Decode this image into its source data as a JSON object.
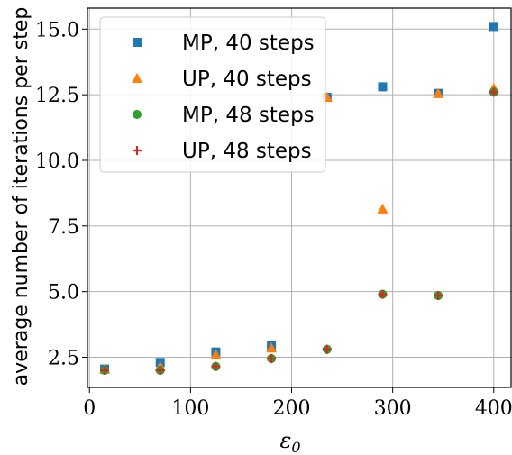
{
  "chart_data": {
    "type": "scatter",
    "xlabel": "ε",
    "xlabel_sub": "0",
    "ylabel": "average number of iterations per step",
    "xlim": [
      -2,
      418
    ],
    "ylim": [
      1.35,
      15.8
    ],
    "x_ticks": [
      0,
      100,
      200,
      300,
      400
    ],
    "x_tick_labels": [
      "0",
      "100",
      "200",
      "300",
      "400"
    ],
    "y_ticks": [
      2.5,
      5.0,
      7.5,
      10.0,
      12.5,
      15.0
    ],
    "y_tick_labels": [
      "2.5",
      "5.0",
      "7.5",
      "10.0",
      "12.5",
      "15.0"
    ],
    "grid": true,
    "legend_position": "upper-left",
    "series": [
      {
        "name": "MP, 40 steps",
        "marker": "square",
        "color": "#1f77b4",
        "points": [
          [
            15,
            2.05
          ],
          [
            70,
            2.3
          ],
          [
            125,
            2.7
          ],
          [
            180,
            2.95
          ],
          [
            235,
            12.4
          ],
          [
            290,
            12.8
          ],
          [
            345,
            12.55
          ],
          [
            400,
            15.1
          ]
        ]
      },
      {
        "name": "UP, 40 steps",
        "marker": "triangle",
        "color": "#ff7f0e",
        "points": [
          [
            15,
            2.05
          ],
          [
            70,
            2.15
          ],
          [
            125,
            2.6
          ],
          [
            180,
            2.85
          ],
          [
            235,
            12.4
          ],
          [
            290,
            8.15
          ],
          [
            345,
            12.55
          ],
          [
            400,
            12.75
          ]
        ]
      },
      {
        "name": "MP, 48 steps",
        "marker": "circle",
        "color": "#2ca02c",
        "points": [
          [
            15,
            2.0
          ],
          [
            70,
            2.0
          ],
          [
            125,
            2.15
          ],
          [
            180,
            2.45
          ],
          [
            235,
            2.8
          ],
          [
            290,
            4.9
          ],
          [
            345,
            4.85
          ],
          [
            400,
            12.6
          ]
        ]
      },
      {
        "name": "UP, 48 steps",
        "marker": "plus",
        "color": "#d62728",
        "points": [
          [
            15,
            2.0
          ],
          [
            70,
            2.0
          ],
          [
            125,
            2.15
          ],
          [
            180,
            2.45
          ],
          [
            235,
            2.8
          ],
          [
            290,
            4.9
          ],
          [
            345,
            4.85
          ],
          [
            400,
            12.6
          ]
        ]
      }
    ]
  }
}
